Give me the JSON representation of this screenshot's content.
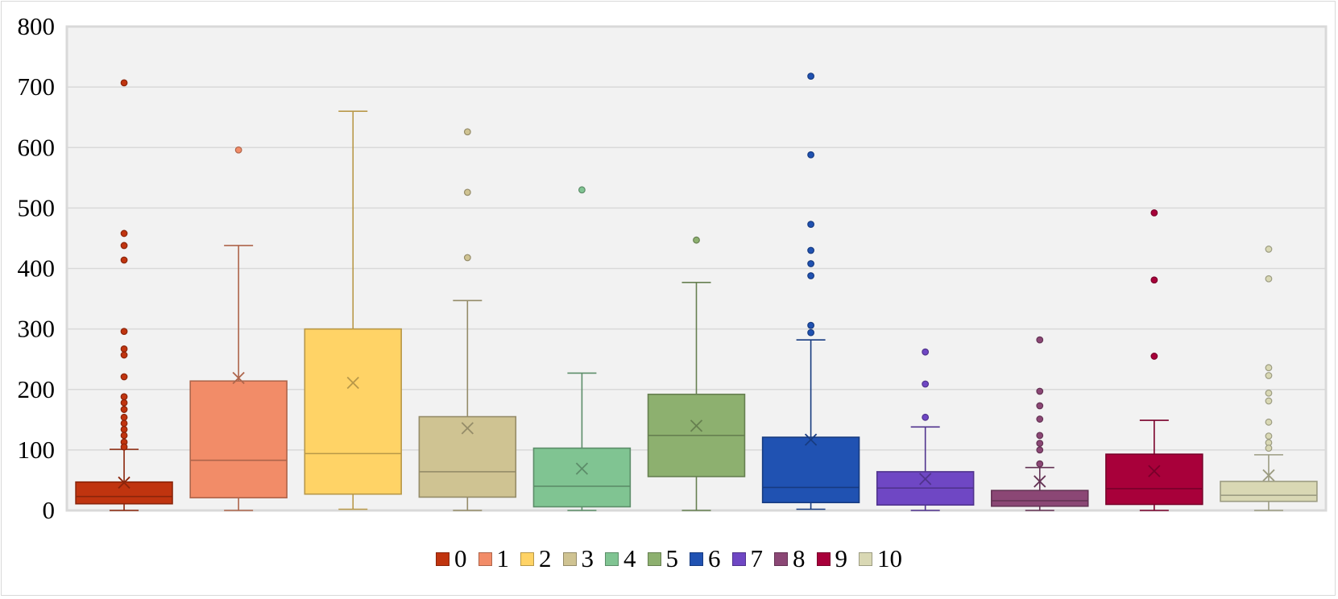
{
  "chart_data": {
    "type": "boxplot",
    "title": "",
    "xlabel": "",
    "ylabel": "",
    "ylim": [
      0,
      800
    ],
    "yticks": [
      0,
      100,
      200,
      300,
      400,
      500,
      600,
      700,
      800
    ],
    "grid": true,
    "legend_position": "bottom",
    "series": [
      {
        "name": "0",
        "color": "#c0340f",
        "q1": 11,
        "median": 23,
        "q3": 47,
        "mean": 46,
        "whisker_low": 0,
        "whisker_high": 101,
        "outliers": [
          707,
          458,
          438,
          414,
          296,
          267,
          257,
          221,
          188,
          178,
          167,
          154,
          144,
          134,
          124,
          113,
          105
        ]
      },
      {
        "name": "1",
        "color": "#f28c68",
        "q1": 21,
        "median": 83,
        "q3": 214,
        "mean": 219,
        "whisker_low": 0,
        "whisker_high": 438,
        "outliers": [
          596
        ]
      },
      {
        "name": "2",
        "color": "#ffd366",
        "q1": 27,
        "median": 94,
        "q3": 300,
        "mean": 211,
        "whisker_low": 2,
        "whisker_high": 660,
        "outliers": []
      },
      {
        "name": "3",
        "color": "#cfc392",
        "q1": 22,
        "median": 64,
        "q3": 155,
        "mean": 136,
        "whisker_low": 0,
        "whisker_high": 347,
        "outliers": [
          626,
          526,
          418
        ]
      },
      {
        "name": "4",
        "color": "#80c492",
        "q1": 6,
        "median": 40,
        "q3": 103,
        "mean": 69,
        "whisker_low": 0,
        "whisker_high": 227,
        "outliers": [
          530
        ]
      },
      {
        "name": "5",
        "color": "#8db06f",
        "q1": 56,
        "median": 124,
        "q3": 192,
        "mean": 140,
        "whisker_low": 0,
        "whisker_high": 377,
        "outliers": [
          447
        ]
      },
      {
        "name": "6",
        "color": "#2052b2",
        "q1": 13,
        "median": 38,
        "q3": 121,
        "mean": 117,
        "whisker_low": 2,
        "whisker_high": 282,
        "outliers": [
          718,
          588,
          473,
          430,
          408,
          388,
          306,
          294
        ]
      },
      {
        "name": "7",
        "color": "#6f47c4",
        "q1": 9,
        "median": 37,
        "q3": 64,
        "mean": 52,
        "whisker_low": 0,
        "whisker_high": 138,
        "outliers": [
          262,
          209,
          154
        ]
      },
      {
        "name": "8",
        "color": "#8b4775",
        "q1": 7,
        "median": 16,
        "q3": 33,
        "mean": 48,
        "whisker_low": 0,
        "whisker_high": 71,
        "outliers": [
          282,
          197,
          173,
          151,
          124,
          111,
          100,
          77
        ]
      },
      {
        "name": "9",
        "color": "#a8003a",
        "q1": 10,
        "median": 36,
        "q3": 93,
        "mean": 65,
        "whisker_low": 0,
        "whisker_high": 149,
        "outliers": [
          492,
          381,
          255
        ]
      },
      {
        "name": "10",
        "color": "#d9d8b4",
        "q1": 15,
        "median": 25,
        "q3": 48,
        "mean": 58,
        "whisker_low": 0,
        "whisker_high": 92,
        "outliers": [
          432,
          383,
          236,
          223,
          194,
          181,
          146,
          123,
          112,
          103
        ]
      }
    ]
  }
}
